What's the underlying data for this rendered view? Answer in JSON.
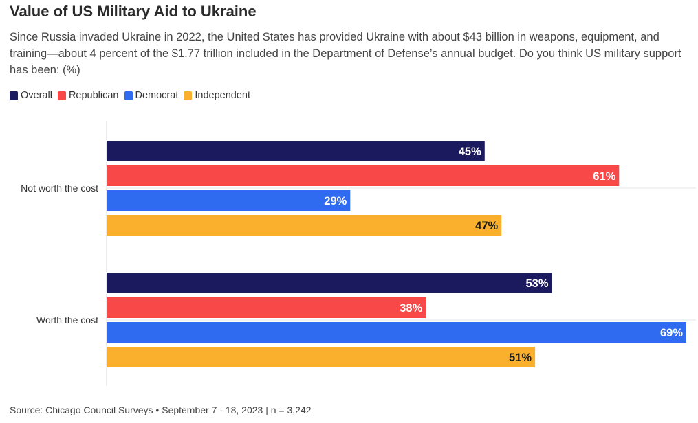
{
  "header": {
    "title": "Value of US Military Aid to Ukraine",
    "subtitle": "Since Russia invaded Ukraine in 2022, the United States has provided Ukraine with about $43 billion in weapons, equipment, and training—about 4 percent of the $1.77 trillion included in the Department of Defense’s annual budget. Do you think US military support has been: (%)"
  },
  "legend": {
    "items": [
      {
        "label": "Overall",
        "color": "#1b1a5e"
      },
      {
        "label": "Republican",
        "color": "#f94848"
      },
      {
        "label": "Democrat",
        "color": "#2f6bf0"
      },
      {
        "label": "Independent",
        "color": "#fbb02d"
      }
    ]
  },
  "chart_data": {
    "type": "bar",
    "orientation": "horizontal",
    "categories": [
      "Not worth the cost",
      "Worth the cost"
    ],
    "series": [
      {
        "name": "Overall",
        "color": "#1b1a5e",
        "values": [
          45,
          53
        ],
        "labels": [
          "45%",
          "53%"
        ]
      },
      {
        "name": "Republican",
        "color": "#f94848",
        "values": [
          61,
          38
        ],
        "labels": [
          "61%",
          "38%"
        ]
      },
      {
        "name": "Democrat",
        "color": "#2f6bf0",
        "values": [
          29,
          69
        ],
        "labels": [
          "29%",
          "69%"
        ]
      },
      {
        "name": "Independent",
        "color": "#fbb02d",
        "values": [
          47,
          51
        ],
        "labels": [
          "47%",
          "51%"
        ]
      }
    ],
    "xlim": [
      0,
      69
    ],
    "legend_position": "top-left"
  },
  "footer": {
    "source": "Source: Chicago Council Surveys • September 7 - 18, 2023 | n = 3,242"
  }
}
